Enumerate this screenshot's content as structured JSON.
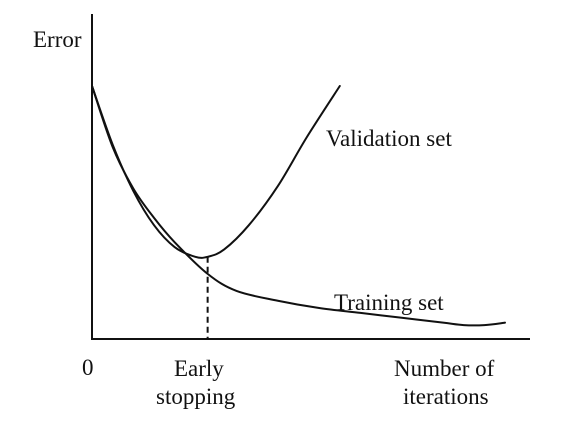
{
  "chart_data": {
    "type": "line",
    "ylabel": "Error",
    "xlabel_lines": [
      "Number of",
      "iterations"
    ],
    "x_origin_label": "0",
    "annotation_lines": [
      "Early",
      "stopping"
    ],
    "xlim": [
      0,
      100
    ],
    "ylim": [
      0,
      100
    ],
    "grid": false,
    "stroke_color": "#111111",
    "early_stopping_x": 28,
    "series": [
      {
        "name": "Validation set",
        "x": [
          0,
          5,
          10,
          15,
          20,
          25,
          28,
          32,
          38,
          45,
          52,
          60
        ],
        "values": [
          100,
          76,
          57,
          43,
          34,
          30,
          30,
          33,
          43,
          59,
          79,
          100
        ]
      },
      {
        "name": "Training set",
        "x": [
          0,
          5,
          10,
          15,
          20,
          28,
          35,
          45,
          55,
          65,
          75,
          85,
          90,
          95,
          100
        ],
        "values": [
          100,
          75,
          58,
          46,
          36,
          23,
          16,
          12,
          9,
          7,
          5,
          3,
          2,
          2,
          3
        ]
      }
    ]
  }
}
